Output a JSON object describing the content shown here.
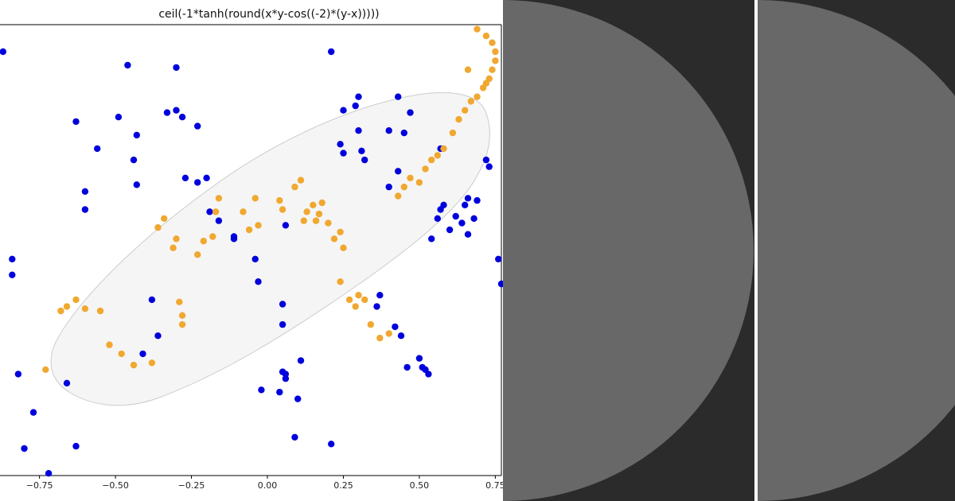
{
  "chart_data": {
    "type": "scatter",
    "title": "ceil(-1*tanh(round(x*y-cos((-2)*(y-x)))))",
    "xlabel": "",
    "ylabel": "",
    "xlim": [
      -0.88,
      0.77
    ],
    "ylim": [
      -1.0,
      1.0
    ],
    "x_ticks": [
      -0.75,
      -0.5,
      -0.25,
      0.0,
      0.25,
      0.5,
      0.75
    ],
    "x_tick_labels": [
      "−0.75",
      "−0.50",
      "−0.25",
      "0.00",
      "0.25",
      "0.50",
      "0.75"
    ],
    "grid": false,
    "region_fill": "#f5f5f5",
    "region_stroke": "#cccccc",
    "series": [
      {
        "color": "#0000dd",
        "points": [
          [
            -0.87,
            0.88
          ],
          [
            -0.84,
            -0.04
          ],
          [
            -0.84,
            -0.11
          ],
          [
            -0.82,
            -0.55
          ],
          [
            -0.8,
            -0.88
          ],
          [
            -0.77,
            -0.72
          ],
          [
            -0.72,
            -0.99
          ],
          [
            -0.66,
            -0.59
          ],
          [
            -0.63,
            -0.87
          ],
          [
            -0.63,
            0.57
          ],
          [
            -0.6,
            0.26
          ],
          [
            -0.6,
            0.18
          ],
          [
            -0.56,
            0.45
          ],
          [
            -0.49,
            0.59
          ],
          [
            -0.46,
            0.82
          ],
          [
            -0.43,
            0.51
          ],
          [
            -0.44,
            0.4
          ],
          [
            -0.43,
            0.29
          ],
          [
            -0.41,
            -0.46
          ],
          [
            -0.38,
            -0.22
          ],
          [
            -0.36,
            -0.38
          ],
          [
            -0.33,
            0.61
          ],
          [
            -0.3,
            0.62
          ],
          [
            -0.3,
            0.81
          ],
          [
            -0.28,
            0.59
          ],
          [
            -0.27,
            0.32
          ],
          [
            -0.23,
            0.55
          ],
          [
            -0.23,
            0.3
          ],
          [
            -0.2,
            0.32
          ],
          [
            -0.16,
            0.13
          ],
          [
            -0.19,
            0.17
          ],
          [
            -0.11,
            0.05
          ],
          [
            -0.11,
            0.06
          ],
          [
            -0.04,
            -0.04
          ],
          [
            -0.03,
            -0.14
          ],
          [
            0.04,
            -0.63
          ],
          [
            0.05,
            -0.54
          ],
          [
            0.06,
            0.11
          ],
          [
            0.06,
            -0.57
          ],
          [
            0.06,
            -0.55
          ],
          [
            0.09,
            -0.83
          ],
          [
            0.1,
            -0.66
          ],
          [
            0.11,
            -0.49
          ],
          [
            0.21,
            0.88
          ],
          [
            0.24,
            0.47
          ],
          [
            0.25,
            0.62
          ],
          [
            0.29,
            0.64
          ],
          [
            0.3,
            0.68
          ],
          [
            0.3,
            0.53
          ],
          [
            0.31,
            0.44
          ],
          [
            0.32,
            0.4
          ],
          [
            0.25,
            0.43
          ],
          [
            0.4,
            0.53
          ],
          [
            0.4,
            0.28
          ],
          [
            0.43,
            0.68
          ],
          [
            0.43,
            0.35
          ],
          [
            0.47,
            0.61
          ],
          [
            0.45,
            0.52
          ],
          [
            0.57,
            0.45
          ],
          [
            0.57,
            0.18
          ],
          [
            0.56,
            0.14
          ],
          [
            0.54,
            0.05
          ],
          [
            0.58,
            0.2
          ],
          [
            0.6,
            0.09
          ],
          [
            0.62,
            0.15
          ],
          [
            0.64,
            0.12
          ],
          [
            0.65,
            0.2
          ],
          [
            0.66,
            0.23
          ],
          [
            0.68,
            0.14
          ],
          [
            0.66,
            0.07
          ],
          [
            0.69,
            0.22
          ],
          [
            0.73,
            0.37
          ],
          [
            0.72,
            0.4
          ],
          [
            0.76,
            -0.04
          ],
          [
            0.77,
            -0.15
          ],
          [
            0.36,
            -0.25
          ],
          [
            0.37,
            -0.2
          ],
          [
            0.42,
            -0.34
          ],
          [
            0.44,
            -0.38
          ],
          [
            0.46,
            -0.52
          ],
          [
            0.5,
            -0.48
          ],
          [
            0.51,
            -0.52
          ],
          [
            0.52,
            -0.53
          ],
          [
            0.53,
            -0.55
          ],
          [
            0.21,
            -0.86
          ],
          [
            0.05,
            -0.33
          ],
          [
            -0.02,
            -0.62
          ],
          [
            0.05,
            -0.24
          ]
        ]
      },
      {
        "color": "#f0a830",
        "points": [
          [
            -0.73,
            -0.53
          ],
          [
            -0.68,
            -0.27
          ],
          [
            -0.66,
            -0.25
          ],
          [
            -0.63,
            -0.22
          ],
          [
            -0.6,
            -0.26
          ],
          [
            -0.55,
            -0.27
          ],
          [
            -0.52,
            -0.42
          ],
          [
            -0.48,
            -0.46
          ],
          [
            -0.44,
            -0.51
          ],
          [
            -0.38,
            -0.5
          ],
          [
            -0.36,
            0.1
          ],
          [
            -0.34,
            0.14
          ],
          [
            -0.31,
            0.01
          ],
          [
            -0.3,
            0.05
          ],
          [
            -0.29,
            -0.23
          ],
          [
            -0.28,
            -0.29
          ],
          [
            -0.28,
            -0.33
          ],
          [
            -0.23,
            -0.02
          ],
          [
            -0.21,
            0.04
          ],
          [
            -0.18,
            0.06
          ],
          [
            -0.17,
            0.17
          ],
          [
            -0.16,
            0.23
          ],
          [
            -0.08,
            0.17
          ],
          [
            -0.06,
            0.09
          ],
          [
            -0.04,
            0.23
          ],
          [
            -0.03,
            0.11
          ],
          [
            0.04,
            0.22
          ],
          [
            0.05,
            0.18
          ],
          [
            0.09,
            0.28
          ],
          [
            0.11,
            0.31
          ],
          [
            0.12,
            0.13
          ],
          [
            0.13,
            0.17
          ],
          [
            0.15,
            0.2
          ],
          [
            0.16,
            0.13
          ],
          [
            0.17,
            0.16
          ],
          [
            0.18,
            0.21
          ],
          [
            0.2,
            0.12
          ],
          [
            0.22,
            0.05
          ],
          [
            0.24,
            0.08
          ],
          [
            0.25,
            0.01
          ],
          [
            0.24,
            -0.14
          ],
          [
            0.27,
            -0.22
          ],
          [
            0.29,
            -0.25
          ],
          [
            0.3,
            -0.2
          ],
          [
            0.32,
            -0.22
          ],
          [
            0.34,
            -0.33
          ],
          [
            0.37,
            -0.39
          ],
          [
            0.4,
            -0.37
          ],
          [
            0.43,
            0.24
          ],
          [
            0.45,
            0.28
          ],
          [
            0.47,
            0.32
          ],
          [
            0.5,
            0.3
          ],
          [
            0.52,
            0.36
          ],
          [
            0.54,
            0.4
          ],
          [
            0.56,
            0.42
          ],
          [
            0.58,
            0.45
          ],
          [
            0.61,
            0.52
          ],
          [
            0.63,
            0.58
          ],
          [
            0.65,
            0.62
          ],
          [
            0.67,
            0.66
          ],
          [
            0.69,
            0.68
          ],
          [
            0.71,
            0.72
          ],
          [
            0.72,
            0.74
          ],
          [
            0.73,
            0.76
          ],
          [
            0.74,
            0.8
          ],
          [
            0.75,
            0.84
          ],
          [
            0.75,
            0.88
          ],
          [
            0.74,
            0.92
          ],
          [
            0.72,
            0.95
          ],
          [
            0.69,
            0.98
          ],
          [
            0.66,
            0.8
          ]
        ]
      }
    ]
  },
  "panels": {
    "dark_bg": "#2b2b2b",
    "circle_fill": "#686868",
    "divider_color": "#ffffff"
  }
}
